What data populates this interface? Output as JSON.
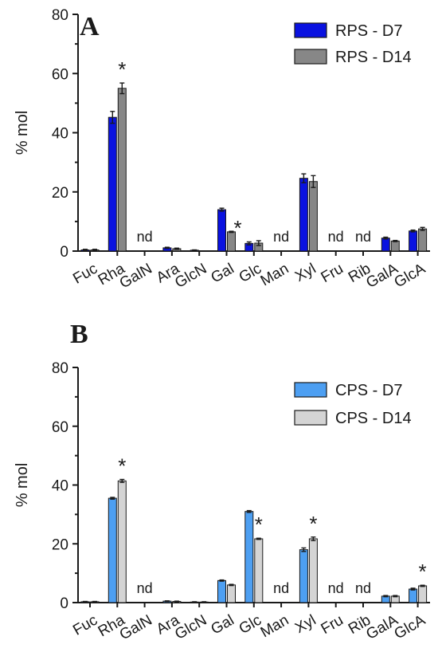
{
  "chart_data": [
    {
      "type": "bar",
      "panel_label": "A",
      "categories": [
        "Fuc",
        "Rha",
        "GalN",
        "Ara",
        "GlcN",
        "Gal",
        "Glc",
        "Man",
        "Xyl",
        "Fru",
        "Rib",
        "GalA",
        "GlcA"
      ],
      "series": [
        {
          "name": "RPS - D7",
          "color": "#0a12e0",
          "values": [
            0.4,
            45.2,
            0,
            1.1,
            0.3,
            14.0,
            2.6,
            0,
            24.6,
            0,
            0,
            4.4,
            6.8
          ],
          "errors": [
            0.2,
            2.0,
            0,
            0.2,
            0.1,
            0.5,
            0.5,
            0,
            1.5,
            0,
            0,
            0.3,
            0.3
          ]
        },
        {
          "name": "RPS - D14",
          "color": "#878787",
          "values": [
            0.4,
            55.0,
            0,
            0.8,
            0,
            6.5,
            2.7,
            0,
            23.5,
            0,
            0,
            3.4,
            7.5
          ],
          "errors": [
            0.2,
            1.8,
            0,
            0.2,
            0,
            0.2,
            0.8,
            0,
            2.0,
            0,
            0,
            0.2,
            0.5
          ]
        }
      ],
      "annotations": [
        {
          "category": "Rha",
          "text": "*"
        },
        {
          "category": "Gal",
          "text": "*"
        },
        {
          "category": "GalN",
          "text": "nd"
        },
        {
          "category": "Man",
          "text": "nd"
        },
        {
          "category": "Fru",
          "text": "nd"
        },
        {
          "category": "Rib",
          "text": "nd"
        }
      ],
      "xlabel": "",
      "ylabel": "% mol",
      "ylim": [
        0,
        80
      ],
      "yticks": [
        "0",
        "20",
        "40",
        "60",
        "80"
      ],
      "legend_position": "top-right",
      "grid": false
    },
    {
      "type": "bar",
      "panel_label": "B",
      "categories": [
        "Fuc",
        "Rha",
        "GalN",
        "Ara",
        "GlcN",
        "Gal",
        "Glc",
        "Man",
        "Xyl",
        "Fru",
        "Rib",
        "GalA",
        "GlcA"
      ],
      "series": [
        {
          "name": "CPS - D7",
          "color": "#4d9ff2",
          "values": [
            0.3,
            35.5,
            0,
            0.5,
            0.2,
            7.5,
            31.0,
            0,
            18.0,
            0,
            0,
            2.2,
            4.6
          ],
          "errors": [
            0.1,
            0.3,
            0,
            0.1,
            0.1,
            0.2,
            0.3,
            0,
            0.6,
            0,
            0,
            0.2,
            0.3
          ]
        },
        {
          "name": "CPS - D14",
          "color": "#d4d4d4",
          "values": [
            0.3,
            41.4,
            0,
            0.4,
            0.2,
            6.0,
            21.7,
            0,
            21.7,
            0,
            0,
            2.2,
            5.7
          ],
          "errors": [
            0.1,
            0.5,
            0,
            0.1,
            0.1,
            0.2,
            0.2,
            0,
            0.6,
            0,
            0,
            0.2,
            0.2
          ]
        }
      ],
      "annotations": [
        {
          "category": "Rha",
          "text": "*"
        },
        {
          "category": "Glc",
          "text": "*"
        },
        {
          "category": "Xyl",
          "text": "*"
        },
        {
          "category": "GlcA",
          "text": "*"
        },
        {
          "category": "GalN",
          "text": "nd"
        },
        {
          "category": "Man",
          "text": "nd"
        },
        {
          "category": "Fru",
          "text": "nd"
        },
        {
          "category": "Rib",
          "text": "nd"
        }
      ],
      "xlabel": "",
      "ylabel": "% mol",
      "ylim": [
        0,
        80
      ],
      "yticks": [
        "0",
        "20",
        "40",
        "60",
        "80"
      ],
      "legend_position": "top-right",
      "grid": false
    }
  ]
}
